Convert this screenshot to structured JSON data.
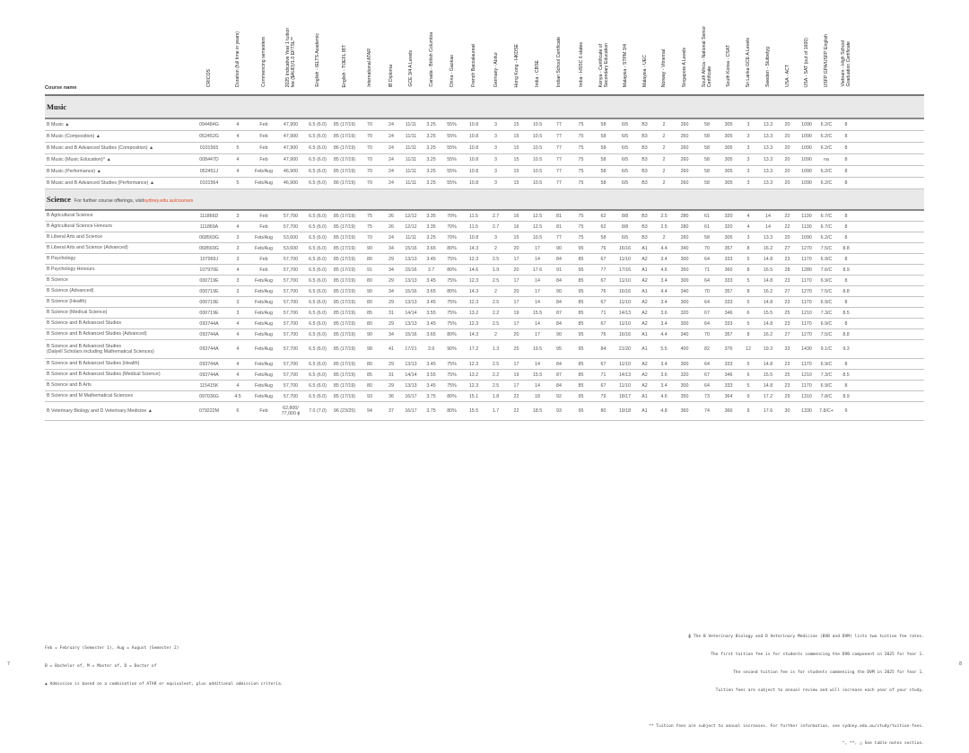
{
  "columns": [
    "Course name",
    "CRICOS",
    "Duration (full time in years)",
    "Commencing semesters",
    "2025 Indicative Year 1 tuition\nfee ($AUD)/1.0 EFTSL**",
    "English - IELTS Academic",
    "English - TOEFL IBT",
    "International ATAR",
    "IB Diploma",
    "GCE 3/4 A Levels",
    "Canada - British Columbia",
    "China - Gaokao",
    "French Baccalaureat",
    "Germany - Abitur",
    "Hong Kong - HKDSE",
    "India - CBSE",
    "Indian School Certificate",
    "India - HSSC 6 states",
    "Kenya - Certificate of\nSecondary Education",
    "Malaysia - STPM 3/4",
    "Malaysia - UEC",
    "Norway - Vitnemal",
    "Singapore A Levels",
    "South Africa - National Senior\nCertificate",
    "South Korea - CSAT",
    "Sri Lanka GCE A Levels",
    "Sweden - Slutbetyg",
    "USA - ACT",
    "USA - SAT (out of 1600)",
    "USFP GPA/USFP English",
    "Vietnam - High School\nGraduation Certificate"
  ],
  "sections": [
    {
      "title": "Music",
      "note": "",
      "link": "",
      "rows": [
        [
          "B Music ▲",
          "094484G",
          "4",
          "Feb",
          "47,900",
          "6.5 (6.0)",
          "85 (17/19)",
          "70",
          "24",
          "11/11",
          "3.25",
          "55%",
          "10.8",
          "3",
          "15",
          "10.5",
          "77",
          "75",
          "58",
          "6/5",
          "B3",
          "2",
          "260",
          "58",
          "305",
          "3",
          "13.3",
          "20",
          "1090",
          "6.2/C",
          "8"
        ],
        [
          "B Music (Composition) ▲",
          "052452G",
          "4",
          "Feb",
          "47,900",
          "6.5 (6.0)",
          "85 (17/19)",
          "70",
          "24",
          "11/11",
          "3.25",
          "55%",
          "10.8",
          "3",
          "15",
          "10.5",
          "77",
          "75",
          "58",
          "6/5",
          "B3",
          "2",
          "260",
          "58",
          "305",
          "3",
          "13.3",
          "20",
          "1090",
          "6.2/C",
          "8"
        ],
        [
          "B Music and B Advanced Studies (Composition) ▲",
          "0101565",
          "5",
          "Feb",
          "47,900",
          "6.5 (6.0)",
          "86 (17/19)",
          "70",
          "24",
          "11/11",
          "3.25",
          "55%",
          "10.8",
          "3",
          "15",
          "10.5",
          "77",
          "75",
          "58",
          "6/5",
          "B3",
          "2",
          "260",
          "58",
          "305",
          "3",
          "13.3",
          "20",
          "1090",
          "6.2/C",
          "8"
        ],
        [
          "B Music (Music Education)^ ▲",
          "008447D",
          "4",
          "Feb",
          "47,900",
          "6.5 (6.0)",
          "85 (17/19)",
          "70",
          "24",
          "11/11",
          "3.25",
          "55%",
          "10.8",
          "3",
          "15",
          "10.5",
          "77",
          "75",
          "58",
          "6/5",
          "B3",
          "2",
          "260",
          "58",
          "305",
          "3",
          "13.3",
          "20",
          "1090",
          "na",
          "8"
        ],
        [
          "B Music (Performance) ▲",
          "052451J",
          "4",
          "Feb/Aug",
          "46,900",
          "6.5 (6.0)",
          "85 (17/19)",
          "70",
          "24",
          "11/11",
          "3.25",
          "55%",
          "10.8",
          "3",
          "15",
          "10.5",
          "77",
          "75",
          "58",
          "6/5",
          "B3",
          "2",
          "260",
          "58",
          "305",
          "3",
          "13.3",
          "20",
          "1090",
          "6.2/C",
          "8"
        ],
        [
          "B Music and B Advanced Studies (Performance) ▲",
          "0101564",
          "5",
          "Feb/Aug",
          "46,900",
          "6.5 (6.0)",
          "86 (17/19)",
          "70",
          "24",
          "11/11",
          "3.25",
          "55%",
          "10.8",
          "3",
          "15",
          "10.5",
          "77",
          "75",
          "58",
          "6/5",
          "B3",
          "2",
          "260",
          "58",
          "305",
          "3",
          "13.3",
          "20",
          "1090",
          "6.2/C",
          "8"
        ]
      ]
    },
    {
      "title": "Science",
      "note": "For further course offerings, visit",
      "link": "sydney.edu.au/courses",
      "rows": [
        [
          "B Agricultural Science",
          "111866D",
          "3",
          "Feb",
          "57,700",
          "6.5 (6.0)",
          "85 (17/19)",
          "75",
          "26",
          "12/12",
          "3.35",
          "70%",
          "11.5",
          "2.7",
          "16",
          "12.5",
          "81",
          "75",
          "62",
          "8/8",
          "B3",
          "2.5",
          "280",
          "61",
          "320",
          "4",
          "14",
          "22",
          "1130",
          "6.7/C",
          "8"
        ],
        [
          "B Agricultural Science Honours",
          "111869A",
          "4",
          "Feb",
          "57,700",
          "6.5 (6.0)",
          "85 (17/19)",
          "75",
          "26",
          "12/12",
          "3.35",
          "70%",
          "11.5",
          "2.7",
          "16",
          "12.5",
          "81",
          "75",
          "62",
          "8/8",
          "B3",
          "2.5",
          "280",
          "61",
          "320",
          "4",
          "14",
          "22",
          "1130",
          "6.7/C",
          "8"
        ],
        [
          "B Liberal Arts and Science",
          "068569G",
          "3",
          "Feb/Aug",
          "53,600",
          "6.5 (6.0)",
          "85 (17/19)",
          "70",
          "24",
          "11/11",
          "3.25",
          "70%",
          "10.8",
          "3",
          "15",
          "10.5",
          "77",
          "75",
          "58",
          "6/5",
          "B3",
          "2",
          "260",
          "58",
          "305",
          "3",
          "13.3",
          "20",
          "1090",
          "6.2/C",
          "8"
        ],
        [
          "B Liberal Arts and Science (Advanced)",
          "068569G",
          "3",
          "Feb/Aug",
          "53,600",
          "6.5 (6.0)",
          "85 (17/19)",
          "90",
          "34",
          "15/16",
          "3.65",
          "80%",
          "14.3",
          "2",
          "20",
          "17",
          "90",
          "95",
          "76",
          "16/16",
          "A1",
          "4.4",
          "340",
          "70",
          "357",
          "8",
          "16.2",
          "27",
          "1270",
          "7.5/C",
          "8.8"
        ],
        [
          "B Psychology",
          "107969J",
          "3",
          "Feb",
          "57,700",
          "6.5 (6.0)",
          "85 (17/19)",
          "80",
          "29",
          "13/13",
          "3.45",
          "75%",
          "12.3",
          "2.5",
          "17",
          "14",
          "84",
          "85",
          "67",
          "11/10",
          "A2",
          "3.4",
          "300",
          "64",
          "333",
          "5",
          "14.8",
          "23",
          "1170",
          "6.9/C",
          "8"
        ],
        [
          "B Psychology Honours",
          "107970E",
          "4",
          "Feb",
          "57,700",
          "6.5 (6.0)",
          "85 (17/19)",
          "91",
          "34",
          "15/16",
          "3.7",
          "80%",
          "14.6",
          "1.9",
          "20",
          "17.6",
          "91",
          "95",
          "77",
          "17/16",
          "A1",
          "4.6",
          "350",
          "71",
          "360",
          "8",
          "16.5",
          "28",
          "1280",
          "7.6/C",
          "8.9"
        ],
        [
          "B Science",
          "000719E",
          "3",
          "Feb/Aug",
          "57,700",
          "6.5 (6.0)",
          "85 (17/19)",
          "80",
          "29",
          "13/13",
          "3.45",
          "75%",
          "12.3",
          "2.5",
          "17",
          "14",
          "84",
          "85",
          "67",
          "11/10",
          "A2",
          "3.4",
          "300",
          "64",
          "333",
          "5",
          "14.8",
          "23",
          "1170",
          "6.9/C",
          "8"
        ],
        [
          "B Science (Advanced)",
          "000719E",
          "3",
          "Feb/Aug",
          "57,700",
          "6.5 (6.0)",
          "85 (17/19)",
          "90",
          "34",
          "15/16",
          "3.65",
          "80%",
          "14.3",
          "2",
          "20",
          "17",
          "90",
          "95",
          "76",
          "16/16",
          "A1",
          "4.4",
          "340",
          "70",
          "357",
          "8",
          "16.2",
          "27",
          "1270",
          "7.5/C",
          "8.8"
        ],
        [
          "B Science (Health)",
          "000719E",
          "3",
          "Feb/Aug",
          "57,700",
          "6.5 (6.0)",
          "85 (17/19)",
          "80",
          "29",
          "13/13",
          "3.45",
          "75%",
          "12.3",
          "2.5",
          "17",
          "14",
          "84",
          "85",
          "67",
          "11/10",
          "A2",
          "3.4",
          "300",
          "64",
          "333",
          "5",
          "14.8",
          "23",
          "1170",
          "6.9/C",
          "8"
        ],
        [
          "B Science (Medical Science)",
          "000719E",
          "3",
          "Feb/Aug",
          "57,700",
          "6.5 (6.0)",
          "85 (17/19)",
          "85",
          "31",
          "14/14",
          "3.55",
          "75%",
          "13.2",
          "2.2",
          "19",
          "15.5",
          "87",
          "85",
          "71",
          "14/13",
          "A2",
          "3.6",
          "320",
          "67",
          "346",
          "6",
          "15.5",
          "25",
          "1210",
          "7.3/C",
          "8.5"
        ],
        [
          "B Science and B Advanced Studies",
          "093744A",
          "4",
          "Feb/Aug",
          "57,700",
          "6.5 (6.0)",
          "85 (17/19)",
          "80",
          "29",
          "13/13",
          "3.45",
          "75%",
          "12.3",
          "2.5",
          "17",
          "14",
          "84",
          "85",
          "67",
          "11/10",
          "A2",
          "3.4",
          "300",
          "64",
          "333",
          "5",
          "14.8",
          "23",
          "1170",
          "6.9/C",
          "8"
        ],
        [
          "B Science and B Advanced Studies (Advanced)",
          "093744A",
          "4",
          "Feb/Aug",
          "57,700",
          "6.5 (6.0)",
          "85 (17/19)",
          "90",
          "34",
          "15/16",
          "3.65",
          "80%",
          "14.3",
          "2",
          "20",
          "17",
          "90",
          "95",
          "76",
          "16/16",
          "A1",
          "4.4",
          "340",
          "70",
          "357",
          "8",
          "16.2",
          "27",
          "1270",
          "7.5/C",
          "8.8"
        ],
        [
          "B Science and B Advanced Studies\n(Dalyell Scholars including Mathematical Sciences)",
          "093744A",
          "4",
          "Feb/Aug",
          "57,700",
          "6.5 (6.0)",
          "85 (17/19)",
          "98",
          "41",
          "17/21",
          "3.9",
          "90%",
          "17.2",
          "1.3",
          "25",
          "19.5",
          "95",
          "95",
          "84",
          "21/20",
          "A1",
          "5.5",
          "400",
          "82",
          "376",
          "12",
          "19.3",
          "33",
          "1430",
          "9.1/C",
          "9.3"
        ],
        [
          "B Science and B Advanced Studies (Health)",
          "093744A",
          "4",
          "Feb/Aug",
          "57,700",
          "6.5 (6.0)",
          "85 (17/19)",
          "80",
          "29",
          "13/13",
          "3.45",
          "75%",
          "12.3",
          "2.5",
          "17",
          "14",
          "84",
          "85",
          "67",
          "11/10",
          "A2",
          "3.4",
          "300",
          "64",
          "333",
          "5",
          "14.8",
          "23",
          "1170",
          "6.9/C",
          "8"
        ],
        [
          "B Science and B Advanced Studies (Medical Science)",
          "093744A",
          "4",
          "Feb/Aug",
          "57,700",
          "6.5 (6.0)",
          "85 (17/19)",
          "85",
          "31",
          "14/14",
          "3.55",
          "75%",
          "13.2",
          "2.2",
          "19",
          "15.5",
          "87",
          "85",
          "71",
          "14/13",
          "A2",
          "3.6",
          "320",
          "67",
          "346",
          "6",
          "15.5",
          "25",
          "1210",
          "7.3/C",
          "8.5"
        ],
        [
          "B Science and B Arts",
          "115415K",
          "4",
          "Feb/Aug",
          "57,700",
          "6.5 (6.0)",
          "85 (17/19)",
          "80",
          "29",
          "13/13",
          "3.45",
          "75%",
          "12.3",
          "2.5",
          "17",
          "14",
          "84",
          "85",
          "67",
          "11/10",
          "A2",
          "3.4",
          "300",
          "64",
          "333",
          "5",
          "14.8",
          "23",
          "1170",
          "6.9/C",
          "8"
        ],
        [
          "B Science and M Mathematical Sciences",
          "097036G",
          "4.5",
          "Feb/Aug",
          "57,700",
          "6.5 (6.0)",
          "85 (17/19)",
          "93",
          "36",
          "16/17",
          "3.75",
          "80%",
          "15.1",
          "1.8",
          "22",
          "18",
          "92",
          "95",
          "79",
          "18/17",
          "A1",
          "4.6",
          "350",
          "73",
          "364",
          "9",
          "17.2",
          "29",
          "1310",
          "7.8/C",
          "8.9"
        ],
        [
          "B Veterinary Biology and D Veterinary Medicine ▲",
          "079222M",
          "6",
          "Feb",
          "62,800/\n77,000 ɸ",
          "7.0 (7.0)",
          "96 (23/25)",
          "94",
          "37",
          "16/17",
          "3.75",
          "80%",
          "15.5",
          "1.7",
          "22",
          "18.5",
          "93",
          "95",
          "80",
          "19/18",
          "A1",
          "4.8",
          "360",
          "74",
          "366",
          "9",
          "17.6",
          "30",
          "1330",
          "7.8/C+",
          "9"
        ]
      ]
    }
  ],
  "footer": {
    "left": [
      "Feb = February (Semester 1), Aug = August (Semester 2)",
      "B = Bachelor of, M = Master of, D = Doctor of",
      "▲ Admission is based on a combination of ATAR or equivalent, plus additional admission criteria."
    ],
    "right_top": [
      "ɸ The B Veterinary Biology and D Veterinary Medicine (BVB and DVM) lists two tuition fee rates.",
      "The first tuition fee is for students commencing the DVB component in 2025 for Year 1.",
      "The second tuition fee is for students commencing the DVM in 2025 for Year 1.",
      "Tuition fees are subject to annual review and will increase each year of your study."
    ],
    "right_bottom": [
      "** Tuition fees are subject to annual increases. For further information, see sydney.edu.au/study/tuition-fees.",
      "^, **, △ See table notes section."
    ],
    "page_left": "7",
    "page_right": "8"
  },
  "colors": {
    "accent_link": "#e64626",
    "section_band": "#e9e9e9"
  }
}
